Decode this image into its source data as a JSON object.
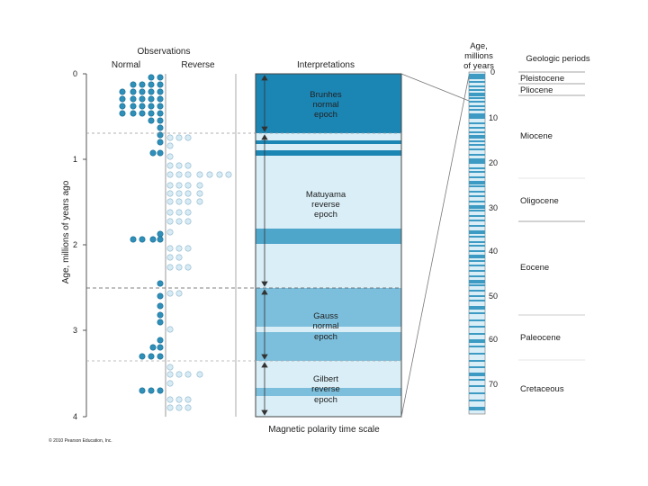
{
  "observations": {
    "title": "Observations",
    "normal_label": "Normal",
    "reverse_label": "Reverse",
    "y_axis_label": "Age, millions of years ago",
    "age_ticks": [
      "0",
      "1",
      "2",
      "3",
      "4"
    ]
  },
  "interpretations": {
    "title": "Interpretations",
    "footer": "Magnetic polarity time scale",
    "epochs": [
      {
        "label_lines": [
          "Brunhes",
          "normal",
          "epoch"
        ],
        "start": 0,
        "end": 0.7
      },
      {
        "label_lines": [
          "Matuyama",
          "reverse",
          "epoch"
        ],
        "start": 0.7,
        "end": 2.5
      },
      {
        "label_lines": [
          "Gauss",
          "normal",
          "epoch"
        ],
        "start": 2.5,
        "end": 3.35
      },
      {
        "label_lines": [
          "Gilbert",
          "reverse",
          "epoch"
        ],
        "start": 3.35,
        "end": 4.0
      }
    ],
    "normal_events": [
      {
        "start": 0.82,
        "end": 0.86
      },
      {
        "start": 0.9,
        "end": 0.97
      },
      {
        "start": 1.8,
        "end": 1.98
      },
      {
        "start": 3.7,
        "end": 3.8
      }
    ],
    "reverse_events": [
      {
        "start": 2.93,
        "end": 3.0
      }
    ]
  },
  "timescale": {
    "title_lines": [
      "Age,",
      "millions",
      "of years"
    ],
    "ticks": [
      "0",
      "10",
      "20",
      "30",
      "40",
      "50",
      "60",
      "70"
    ]
  },
  "geologic_periods": {
    "title": "Geologic periods",
    "items": [
      "Pleistocene",
      "Pliocene",
      "Miocene",
      "Oligocene",
      "Eocene",
      "Paleocene",
      "Cretaceous"
    ]
  },
  "copyright": "© 2010 Pearson Education, Inc.",
  "colors": {
    "normal_dark": "#1b86b4",
    "normal_mid": "#7cbfdc",
    "reverse_light": "#d9eef7",
    "dot_normal": "#2e8fb8",
    "dot_reverse": "#d7ebf5"
  }
}
